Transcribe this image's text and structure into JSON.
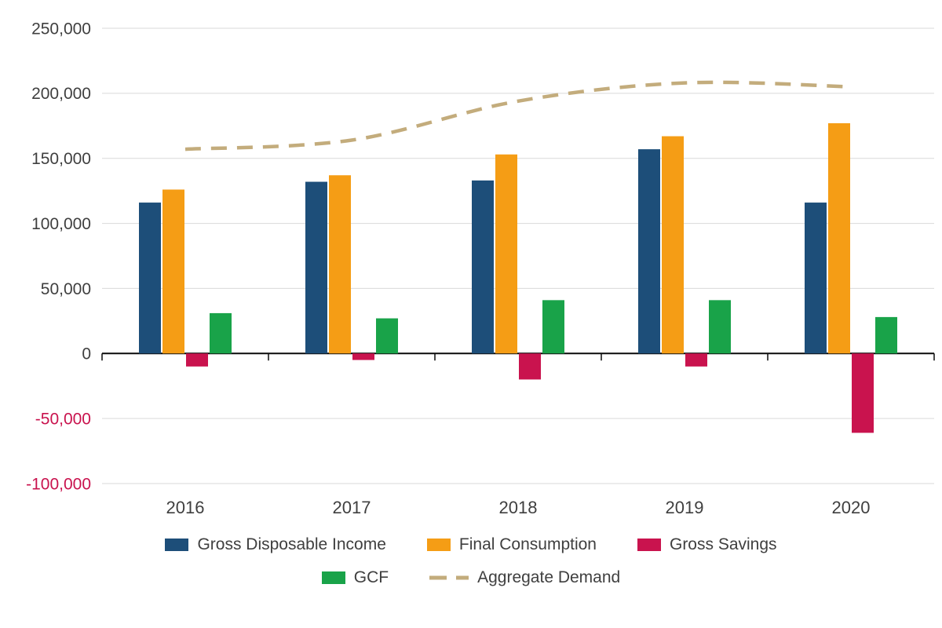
{
  "chart_data": {
    "type": "bar",
    "title": "",
    "categories": [
      "2016",
      "2017",
      "2018",
      "2019",
      "2020"
    ],
    "series": [
      {
        "name": "Gross Disposable Income",
        "kind": "bar",
        "color": "#1D4E79",
        "values": [
          116000,
          132000,
          133000,
          157000,
          116000
        ]
      },
      {
        "name": "Final Consumption",
        "kind": "bar",
        "color": "#F59D15",
        "values": [
          126000,
          137000,
          153000,
          167000,
          177000
        ]
      },
      {
        "name": "Gross Savings",
        "kind": "bar",
        "color": "#C9134E",
        "values": [
          -10000,
          -5000,
          -20000,
          -10000,
          -61000
        ]
      },
      {
        "name": "GCF",
        "kind": "bar",
        "color": "#19A349",
        "values": [
          31000,
          27000,
          41000,
          41000,
          28000
        ]
      },
      {
        "name": "Aggregate Demand",
        "kind": "line",
        "dashed": true,
        "color": "#C3AC7C",
        "values": [
          157000,
          164000,
          194000,
          208000,
          205000
        ]
      }
    ],
    "xlabel": "",
    "ylabel": "",
    "ylim": [
      -100000,
      250000
    ],
    "ytick_step": 50000,
    "ytick_labels": [
      "-100,000",
      "-50,000",
      "0",
      "50,000",
      "100,000",
      "150,000",
      "200,000",
      "250,000"
    ],
    "grid": true,
    "legend_position": "bottom",
    "axis_text_color": "#3F3F3F",
    "negative_tick_color": "#C9134E",
    "gridline_color": "#D9D9D9",
    "zero_line_color": "#0A0A0A"
  }
}
